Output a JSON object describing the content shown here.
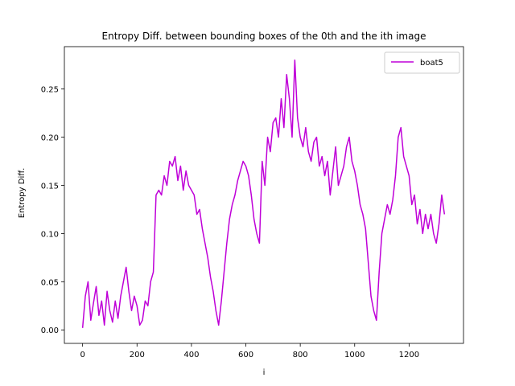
{
  "chart_data": {
    "type": "line",
    "title": "Entropy Diff. between bounding boxes of the 0th and the ith image",
    "xlabel": "i",
    "ylabel": "Entropy Diff.",
    "xlim": [
      -67,
      1400
    ],
    "ylim": [
      -0.014,
      0.294
    ],
    "xticks": [
      0,
      200,
      400,
      600,
      800,
      1000,
      1200
    ],
    "yticks": [
      0.0,
      0.05,
      0.1,
      0.15,
      0.2,
      0.25
    ],
    "ytick_labels": [
      "0.00",
      "0.05",
      "0.10",
      "0.15",
      "0.20",
      "0.25"
    ],
    "grid": false,
    "legend_position": "top-right",
    "series": [
      {
        "name": "boat5",
        "color": "#bf00d8",
        "x": [
          0,
          10,
          20,
          30,
          40,
          50,
          60,
          70,
          80,
          90,
          100,
          110,
          120,
          130,
          140,
          150,
          160,
          170,
          180,
          190,
          200,
          210,
          220,
          230,
          240,
          250,
          260,
          270,
          280,
          290,
          300,
          310,
          320,
          330,
          340,
          350,
          360,
          370,
          380,
          390,
          400,
          410,
          420,
          430,
          440,
          450,
          460,
          470,
          480,
          490,
          500,
          510,
          520,
          530,
          540,
          550,
          560,
          570,
          580,
          590,
          600,
          610,
          620,
          630,
          640,
          650,
          660,
          670,
          680,
          690,
          700,
          710,
          720,
          730,
          740,
          750,
          760,
          770,
          780,
          790,
          800,
          810,
          820,
          830,
          840,
          850,
          860,
          870,
          880,
          890,
          900,
          910,
          920,
          930,
          940,
          950,
          960,
          970,
          980,
          990,
          1000,
          1010,
          1020,
          1030,
          1040,
          1050,
          1060,
          1070,
          1080,
          1090,
          1100,
          1110,
          1120,
          1130,
          1140,
          1150,
          1160,
          1170,
          1180,
          1190,
          1200,
          1210,
          1220,
          1230,
          1240,
          1250,
          1260,
          1270,
          1280,
          1290,
          1300,
          1310,
          1320,
          1330
        ],
        "y": [
          0.002,
          0.035,
          0.05,
          0.01,
          0.028,
          0.045,
          0.015,
          0.03,
          0.005,
          0.04,
          0.02,
          0.008,
          0.03,
          0.012,
          0.035,
          0.05,
          0.065,
          0.04,
          0.02,
          0.035,
          0.025,
          0.005,
          0.01,
          0.03,
          0.025,
          0.05,
          0.06,
          0.14,
          0.145,
          0.14,
          0.16,
          0.15,
          0.175,
          0.17,
          0.18,
          0.155,
          0.17,
          0.145,
          0.165,
          0.15,
          0.145,
          0.14,
          0.12,
          0.125,
          0.105,
          0.09,
          0.075,
          0.055,
          0.04,
          0.02,
          0.005,
          0.03,
          0.06,
          0.09,
          0.115,
          0.13,
          0.14,
          0.155,
          0.165,
          0.175,
          0.17,
          0.16,
          0.14,
          0.115,
          0.1,
          0.09,
          0.175,
          0.15,
          0.2,
          0.185,
          0.215,
          0.22,
          0.2,
          0.24,
          0.21,
          0.265,
          0.24,
          0.2,
          0.28,
          0.22,
          0.2,
          0.19,
          0.21,
          0.185,
          0.175,
          0.195,
          0.2,
          0.17,
          0.18,
          0.16,
          0.175,
          0.14,
          0.165,
          0.19,
          0.15,
          0.16,
          0.17,
          0.19,
          0.2,
          0.175,
          0.165,
          0.15,
          0.13,
          0.12,
          0.105,
          0.07,
          0.035,
          0.02,
          0.01,
          0.06,
          0.1,
          0.115,
          0.13,
          0.12,
          0.135,
          0.16,
          0.2,
          0.21,
          0.18,
          0.17,
          0.16,
          0.13,
          0.14,
          0.11,
          0.125,
          0.1,
          0.12,
          0.105,
          0.12,
          0.1,
          0.09,
          0.11,
          0.14,
          0.12
        ]
      }
    ]
  }
}
